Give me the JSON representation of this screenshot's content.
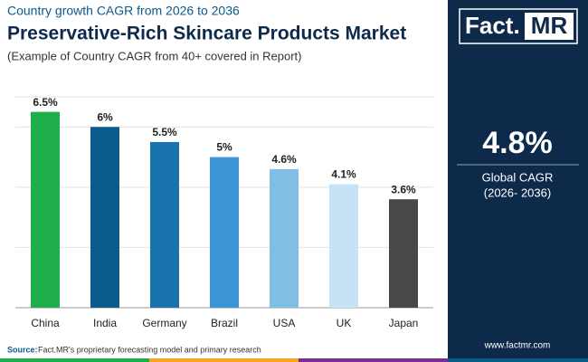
{
  "header": {
    "kicker": "Country growth CAGR from 2026 to 2036",
    "title": "Preservative-Rich Skincare Products Market",
    "subtitle": "(Example of Country CAGR from 40+ covered in Report)"
  },
  "chart_data": {
    "type": "bar",
    "categories": [
      "China",
      "India",
      "Germany",
      "Brazil",
      "USA",
      "UK",
      "Japan"
    ],
    "values": [
      6.5,
      6,
      5.5,
      5,
      4.6,
      4.1,
      3.6
    ],
    "value_labels": [
      "6.5%",
      "6%",
      "5.5%",
      "5%",
      "4.6%",
      "4.1%",
      "3.6%"
    ],
    "colors": [
      "#1fae4b",
      "#0b5a8c",
      "#1a72ad",
      "#3b95d6",
      "#80bee6",
      "#c6e3f5",
      "#48484b"
    ],
    "ylim": [
      0,
      7
    ],
    "yticks": [
      0,
      2,
      4,
      6,
      7
    ],
    "grid": true
  },
  "logo": {
    "left": "Fact.",
    "right": "MR"
  },
  "summary": {
    "value": "4.8%",
    "label": "Global CAGR",
    "period": "(2026- 2036)"
  },
  "footer": {
    "source_label": "Source:",
    "source": "Fact.MR's proprietary forecasting model and primary research",
    "website": "www.factmr.com"
  }
}
